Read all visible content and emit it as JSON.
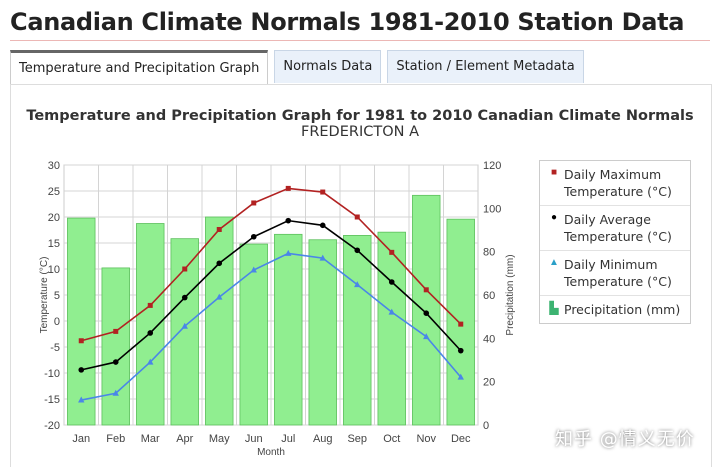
{
  "page": {
    "title": "Canadian Climate Normals 1981-2010 Station Data"
  },
  "tabs": [
    {
      "label": "Temperature and Precipitation Graph",
      "active": true
    },
    {
      "label": "Normals Data",
      "active": false
    },
    {
      "label": "Station / Element Metadata",
      "active": false
    }
  ],
  "watermark": "知乎 @情义无价",
  "chart_data": {
    "type": "bar+line",
    "title": "Temperature and Precipitation Graph for 1981 to 2010 Canadian Climate Normals",
    "subtitle": "FREDERICTON A",
    "xlabel": "Month",
    "ylabel_left": "Temperature (°C)",
    "ylabel_right": "Precipitation (mm)",
    "ylim_left": [
      -20,
      30
    ],
    "ylim_right": [
      0,
      120
    ],
    "yticks_left": [
      -20,
      -15,
      -10,
      -5,
      0,
      5,
      10,
      15,
      20,
      25,
      30
    ],
    "yticks_right": [
      0,
      20,
      40,
      60,
      80,
      100,
      120
    ],
    "categories": [
      "Jan",
      "Feb",
      "Mar",
      "Apr",
      "May",
      "Jun",
      "Jul",
      "Aug",
      "Sep",
      "Oct",
      "Nov",
      "Dec"
    ],
    "grid": true,
    "legend_position": "right",
    "series": [
      {
        "name": "Daily Maximum Temperature (°C)",
        "kind": "line",
        "axis": "left",
        "marker": "square",
        "color": "#b22222",
        "values": [
          -3.8,
          -2.0,
          3.0,
          10.0,
          17.6,
          22.7,
          25.5,
          24.8,
          20.0,
          13.2,
          6.0,
          -0.6
        ]
      },
      {
        "name": "Daily Average Temperature (°C)",
        "kind": "line",
        "axis": "left",
        "marker": "circle",
        "color": "#000000",
        "values": [
          -9.4,
          -7.9,
          -2.3,
          4.5,
          11.1,
          16.2,
          19.3,
          18.4,
          13.6,
          7.5,
          1.5,
          -5.7
        ]
      },
      {
        "name": "Daily Minimum Temperature (°C)",
        "kind": "line",
        "axis": "left",
        "marker": "triangle",
        "color": "#4a86e8",
        "values": [
          -15.2,
          -13.9,
          -7.9,
          -1.0,
          4.6,
          9.8,
          13.0,
          12.1,
          7.0,
          1.7,
          -3.0,
          -10.8
        ]
      },
      {
        "name": "Precipitation (mm)",
        "kind": "bar",
        "axis": "right",
        "color": "#90ee90",
        "values": [
          95.5,
          72.5,
          93.0,
          86.0,
          96.0,
          83.5,
          88.0,
          85.5,
          87.5,
          89.0,
          106.0,
          95.0
        ]
      }
    ]
  }
}
